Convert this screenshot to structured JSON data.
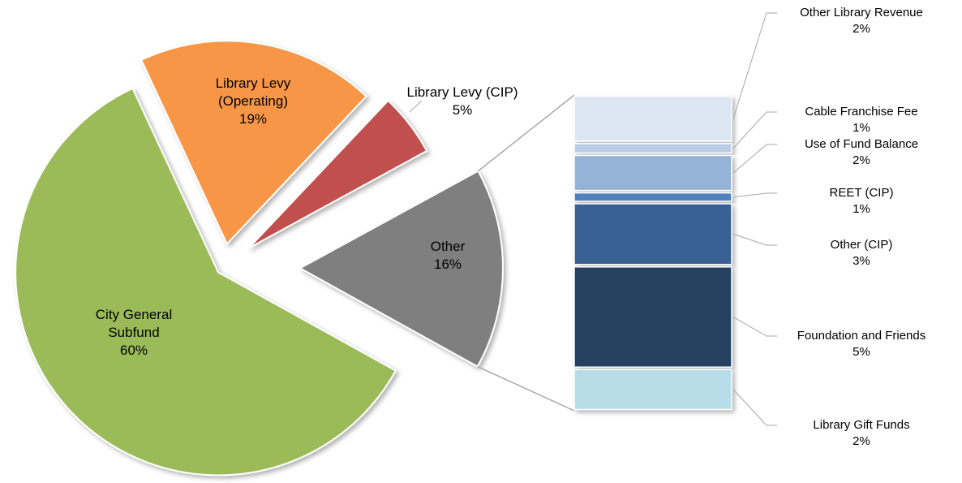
{
  "chart_data": {
    "type": "bar-of-pie",
    "pie": {
      "categories": [
        "Library Levy (Operating)",
        "Library Levy (CIP)",
        "Other",
        "City General Subfund"
      ],
      "values": [
        19,
        5,
        16,
        60
      ],
      "value_labels": [
        "19%",
        "5%",
        "16%",
        "60%"
      ],
      "colors": [
        "#f79646",
        "#c0504d",
        "#7f7f7f",
        "#9bbb59"
      ]
    },
    "stack": {
      "categories": [
        "Other Library Revenue",
        "Cable Franchise Fee",
        "Use of Fund Balance",
        "REET (CIP)",
        "Other (CIP)",
        "Foundation and Friends",
        "Library Gift Funds"
      ],
      "values": [
        2.4,
        0.6,
        1.9,
        0.55,
        3.2,
        5.2,
        2.15
      ],
      "value_labels": [
        "2%",
        "1%",
        "2%",
        "1%",
        "3%",
        "5%",
        "2%"
      ],
      "colors": [
        "#dce6f2",
        "#b9cde5",
        "#95b3d7",
        "#4f81bd",
        "#376092",
        "#254061",
        "#b7dee8"
      ]
    }
  }
}
